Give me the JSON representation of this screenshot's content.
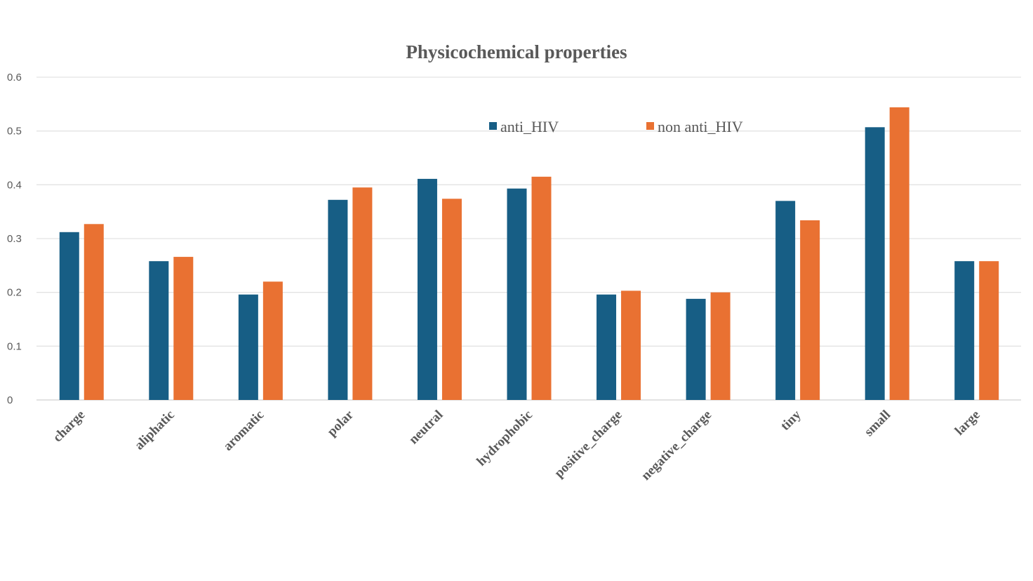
{
  "chart_data": {
    "type": "bar",
    "title": "Physicochemical properties",
    "xlabel": "",
    "ylabel": "",
    "ylim": [
      0,
      0.6
    ],
    "yticks": [
      "0",
      "0.1",
      "0.2",
      "0.3",
      "0.4",
      "0.5",
      "0.6"
    ],
    "grid": true,
    "legend_position": "top-center",
    "categories": [
      "charge",
      "aliphatic",
      "aromatic",
      "polar",
      "neutral",
      "hydrophobic",
      "positive_charge",
      "negative_charge",
      "tiny",
      "small",
      "large"
    ],
    "series": [
      {
        "name": "anti_HIV",
        "color": "#175e85",
        "values": [
          0.312,
          0.258,
          0.196,
          0.372,
          0.411,
          0.393,
          0.196,
          0.188,
          0.37,
          0.507,
          0.258
        ]
      },
      {
        "name": "non anti_HIV",
        "color": "#e97132",
        "values": [
          0.327,
          0.266,
          0.22,
          0.395,
          0.374,
          0.415,
          0.203,
          0.2,
          0.334,
          0.544,
          0.258
        ]
      }
    ]
  }
}
